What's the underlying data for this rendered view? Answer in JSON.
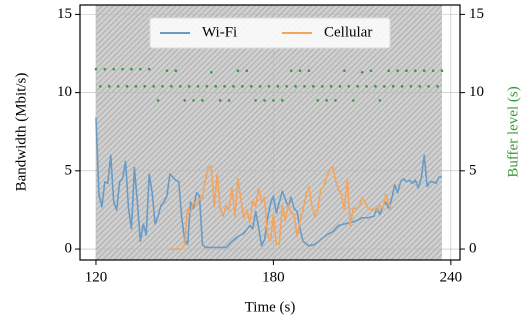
{
  "chart_data": {
    "type": "line",
    "xlabel": "Time (s)",
    "ylabel": "Bandwidth (Mbit/s)",
    "y2label": "Buffer level (s)",
    "xlim": [
      114.6,
      243.1
    ],
    "xticks": [
      120,
      180,
      240
    ],
    "ylim": [
      -0.7,
      15.6
    ],
    "yticks": [
      0,
      5,
      10,
      15
    ],
    "y2lim": [
      -0.7,
      15.6
    ],
    "y2ticks": [
      0,
      5,
      10,
      15
    ],
    "y2color": "#3a9a3a",
    "grid": true,
    "legend": "upper center",
    "shaded_span": [
      120,
      237
    ],
    "series": [
      {
        "name": "Wi-Fi",
        "color": "#6a9bc5",
        "x": [
          120,
          121,
          122,
          123,
          124,
          125,
          126,
          127,
          128,
          129,
          130,
          131,
          132,
          133,
          134,
          135,
          136,
          137,
          138,
          139,
          140,
          141,
          142,
          143,
          144,
          145,
          146,
          147,
          148,
          149,
          150,
          151,
          152,
          153,
          154,
          155,
          156,
          157,
          160,
          164,
          166,
          168,
          170,
          172,
          173,
          174,
          175,
          176,
          177,
          178,
          179,
          180,
          181,
          182,
          183,
          184,
          185,
          186,
          187,
          188,
          189,
          190,
          192,
          194,
          196,
          198,
          200,
          202,
          204,
          206,
          208,
          210,
          212,
          214,
          215,
          216,
          217,
          218,
          219,
          220,
          221,
          222,
          223,
          224,
          225,
          226,
          227,
          228,
          229,
          230,
          231,
          232,
          233,
          234,
          235,
          236,
          237
        ],
        "values": [
          8.4,
          3.5,
          2.7,
          4.3,
          4.2,
          6.0,
          3.0,
          2.5,
          4.3,
          4.5,
          5.6,
          2.6,
          1.3,
          5.2,
          3.0,
          0.5,
          1.6,
          0.9,
          4.8,
          3.6,
          1.6,
          2.1,
          2.8,
          3.0,
          3.4,
          4.8,
          4.6,
          4.4,
          4.3,
          2.0,
          0.6,
          0.3,
          3.0,
          2.6,
          3.6,
          3.4,
          0.3,
          0.1,
          0.1,
          0.1,
          0.5,
          0.8,
          1.0,
          1.5,
          1.3,
          2.4,
          1.4,
          0.2,
          0.6,
          1.9,
          2.9,
          3.4,
          2.3,
          3.0,
          3.7,
          3.2,
          2.7,
          3.3,
          2.6,
          2.4,
          1.3,
          0.5,
          0.2,
          0.3,
          0.6,
          0.9,
          1.1,
          1.5,
          1.6,
          1.7,
          1.8,
          2.0,
          2.0,
          2.1,
          2.6,
          2.2,
          2.7,
          3.0,
          2.6,
          3.2,
          4.1,
          3.6,
          4.3,
          4.5,
          4.3,
          4.4,
          4.2,
          4.4,
          3.9,
          4.5,
          6.0,
          4.0,
          4.3,
          4.3,
          4.2,
          4.6,
          4.6
        ]
      },
      {
        "name": "Cellular",
        "color": "#f2a55f",
        "x": [
          145,
          146,
          147,
          148,
          149,
          150,
          151,
          152,
          153,
          154,
          155,
          156,
          157,
          158,
          159,
          160,
          161,
          162,
          163,
          164,
          165,
          166,
          167,
          168,
          169,
          170,
          171,
          172,
          173,
          174,
          175,
          176,
          177,
          178,
          179,
          180,
          181,
          182,
          183,
          184,
          185,
          186,
          187,
          188,
          189,
          190,
          191,
          192,
          193,
          194,
          195,
          196,
          197,
          198,
          199,
          200,
          201,
          202,
          203,
          204,
          205,
          206,
          207,
          208,
          209,
          210,
          211,
          212,
          213,
          214,
          215,
          216,
          217,
          218,
          219,
          220
        ],
        "values": [
          0,
          0,
          0,
          0,
          0,
          0.3,
          2.6,
          2.3,
          3.0,
          2.8,
          3.2,
          3.3,
          4.4,
          5.2,
          5.3,
          2.7,
          4.8,
          2.6,
          2.1,
          2.8,
          2.5,
          3.9,
          2.1,
          4.5,
          3.2,
          2.0,
          2.5,
          1.7,
          3.1,
          2.7,
          3.9,
          3.0,
          3.3,
          0.9,
          0.5,
          2.2,
          0.3,
          0.3,
          2.8,
          1.8,
          2.8,
          2.3,
          2.2,
          0.8,
          1.8,
          2.5,
          3.4,
          4.0,
          2.8,
          2.1,
          2.5,
          3.8,
          4.0,
          4.6,
          5.1,
          5.3,
          4.4,
          3.8,
          3.5,
          2.5,
          4.5,
          1.5,
          2.6,
          2.6,
          2.7,
          3.3,
          3.0,
          2.6,
          2.5,
          2.6,
          2.5,
          2.8,
          2.6,
          3.5,
          2.9,
          2.5
        ]
      },
      {
        "color": "#3a9a3a",
        "axis": "y2",
        "style": "dots",
        "x": [
          120,
          121.5,
          123,
          124.5,
          126,
          127.5,
          129,
          130.5,
          132,
          133.5,
          135,
          136.5,
          138,
          139.5,
          141,
          142.5,
          144,
          145.5,
          147,
          148.5,
          150,
          151.5,
          153,
          154.5,
          156,
          157.5,
          159,
          160.5,
          162,
          163.5,
          165,
          166.5,
          168,
          169.5,
          171,
          172.5,
          174,
          175.5,
          177,
          178.5,
          180,
          181.5,
          183,
          184.5,
          186,
          187.5,
          189,
          190.5,
          192,
          193.5,
          195,
          196.5,
          198,
          199.5,
          201,
          202.5,
          204,
          205.5,
          207,
          208.5,
          210,
          211.5,
          213,
          214.5,
          216,
          217.5,
          219,
          220.5,
          222,
          223.5,
          225,
          226.5,
          228,
          229.5,
          231,
          232.5,
          234,
          235.5,
          237
        ],
        "values": [
          11.5,
          10.4,
          11.5,
          10.4,
          11.5,
          10.4,
          11.5,
          10.4,
          11.5,
          10.4,
          11.5,
          10.4,
          11.5,
          10.4,
          9.5,
          10.4,
          11.4,
          10.4,
          11.4,
          10.4,
          9.5,
          10.4,
          9.5,
          10.4,
          9.5,
          10.4,
          11.3,
          10.4,
          9.5,
          10.4,
          9.5,
          10.4,
          11.4,
          10.4,
          11.4,
          10.4,
          9.5,
          10.4,
          9.5,
          10.4,
          9.5,
          10.4,
          9.5,
          10.4,
          11.4,
          10.4,
          11.4,
          10.4,
          11.4,
          10.4,
          9.5,
          10.4,
          9.5,
          10.4,
          9.5,
          10.4,
          11.4,
          10.4,
          9.5,
          10.4,
          11.3,
          10.4,
          11.4,
          10.4,
          9.5,
          10.4,
          11.4,
          10.4,
          11.4,
          10.4,
          11.4,
          10.4,
          11.4,
          10.4,
          11.4,
          10.4,
          11.4,
          10.4,
          11.4
        ]
      }
    ]
  }
}
